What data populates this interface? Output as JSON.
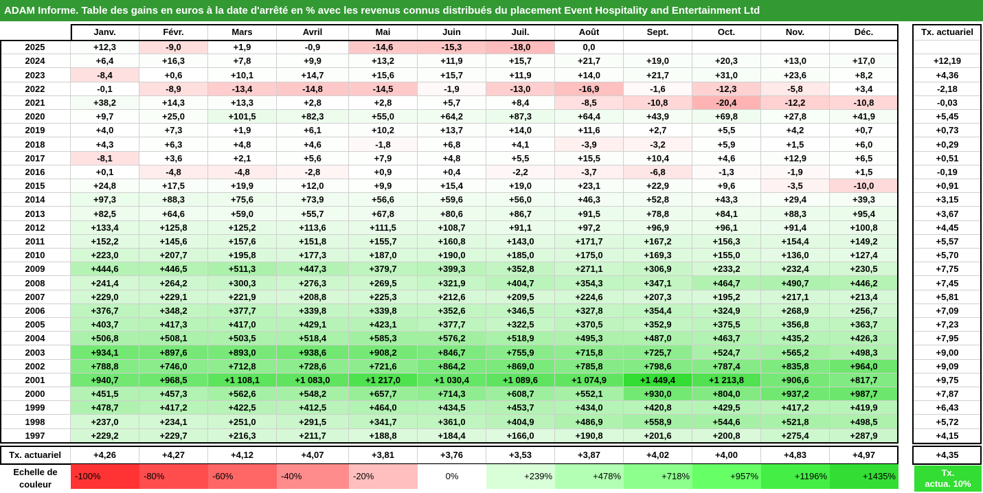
{
  "title": "ADAM Informe. Table des gains en euros à la date d'arrêté en % avec les revenus connus distribués du placement Event Hospitality and Entertainment Ltd",
  "months": [
    "Janv.",
    "Févr.",
    "Mars",
    "Avril",
    "Mai",
    "Juin",
    "Juil.",
    "Août",
    "Sept.",
    "Oct.",
    "Nov.",
    "Déc."
  ],
  "tx_header": "Tx. actuariel",
  "rows": [
    {
      "year": "2025",
      "values": [
        "+12,3",
        "-9,0",
        "+1,9",
        "-0,9",
        "-14,6",
        "-15,3",
        "-18,0",
        "0,0",
        "",
        "",
        "",
        ""
      ],
      "tx": ""
    },
    {
      "year": "2024",
      "values": [
        "+6,4",
        "+16,3",
        "+7,8",
        "+9,9",
        "+13,2",
        "+11,9",
        "+15,7",
        "+21,7",
        "+19,0",
        "+20,3",
        "+13,0",
        "+17,0"
      ],
      "tx": "+12,19"
    },
    {
      "year": "2023",
      "values": [
        "-8,4",
        "+0,6",
        "+10,1",
        "+14,7",
        "+15,6",
        "+15,7",
        "+11,9",
        "+14,0",
        "+21,7",
        "+31,0",
        "+23,6",
        "+8,2"
      ],
      "tx": "+4,36"
    },
    {
      "year": "2022",
      "values": [
        "-0,1",
        "-8,9",
        "-13,4",
        "-14,8",
        "-14,5",
        "-1,9",
        "-13,0",
        "-16,9",
        "-1,6",
        "-12,3",
        "-5,8",
        "+3,4"
      ],
      "tx": "-2,18"
    },
    {
      "year": "2021",
      "values": [
        "+38,2",
        "+14,3",
        "+13,3",
        "+2,8",
        "+2,8",
        "+5,7",
        "+8,4",
        "-8,5",
        "-10,8",
        "-20,4",
        "-12,2",
        "-10,8"
      ],
      "tx": "-0,03"
    },
    {
      "year": "2020",
      "values": [
        "+9,7",
        "+25,0",
        "+101,5",
        "+82,3",
        "+55,0",
        "+64,2",
        "+87,3",
        "+64,4",
        "+43,9",
        "+69,8",
        "+27,8",
        "+41,9"
      ],
      "tx": "+5,45"
    },
    {
      "year": "2019",
      "values": [
        "+4,0",
        "+7,3",
        "+1,9",
        "+6,1",
        "+10,2",
        "+13,7",
        "+14,0",
        "+11,6",
        "+2,7",
        "+5,5",
        "+4,2",
        "+0,7"
      ],
      "tx": "+0,73"
    },
    {
      "year": "2018",
      "values": [
        "+4,3",
        "+6,3",
        "+4,8",
        "+4,6",
        "-1,8",
        "+6,8",
        "+4,1",
        "-3,9",
        "-3,2",
        "+5,9",
        "+1,5",
        "+6,0"
      ],
      "tx": "+0,29"
    },
    {
      "year": "2017",
      "values": [
        "-8,1",
        "+3,6",
        "+2,1",
        "+5,6",
        "+7,9",
        "+4,8",
        "+5,5",
        "+15,5",
        "+10,4",
        "+4,6",
        "+12,9",
        "+6,5"
      ],
      "tx": "+0,51"
    },
    {
      "year": "2016",
      "values": [
        "+0,1",
        "-4,8",
        "-4,8",
        "-2,8",
        "+0,9",
        "+0,4",
        "-2,2",
        "-3,7",
        "-6,8",
        "-1,3",
        "-1,9",
        "+1,5"
      ],
      "tx": "-0,19"
    },
    {
      "year": "2015",
      "values": [
        "+24,8",
        "+17,5",
        "+19,9",
        "+12,0",
        "+9,9",
        "+15,4",
        "+19,0",
        "+23,1",
        "+22,9",
        "+9,6",
        "-3,5",
        "-10,0"
      ],
      "tx": "+0,91"
    },
    {
      "year": "2014",
      "values": [
        "+97,3",
        "+88,3",
        "+75,6",
        "+73,9",
        "+56,6",
        "+59,6",
        "+56,0",
        "+46,3",
        "+52,8",
        "+43,3",
        "+29,4",
        "+39,3"
      ],
      "tx": "+3,15"
    },
    {
      "year": "2013",
      "values": [
        "+82,5",
        "+64,6",
        "+59,0",
        "+55,7",
        "+67,8",
        "+80,6",
        "+86,7",
        "+91,5",
        "+78,8",
        "+84,1",
        "+88,3",
        "+95,4"
      ],
      "tx": "+3,67"
    },
    {
      "year": "2012",
      "values": [
        "+133,4",
        "+125,8",
        "+125,2",
        "+113,6",
        "+111,5",
        "+108,7",
        "+91,1",
        "+97,2",
        "+96,9",
        "+96,1",
        "+91,4",
        "+100,8"
      ],
      "tx": "+4,45"
    },
    {
      "year": "2011",
      "values": [
        "+152,2",
        "+145,6",
        "+157,6",
        "+151,8",
        "+155,7",
        "+160,8",
        "+143,0",
        "+171,7",
        "+167,2",
        "+156,3",
        "+154,4",
        "+149,2"
      ],
      "tx": "+5,57"
    },
    {
      "year": "2010",
      "values": [
        "+223,0",
        "+207,7",
        "+195,8",
        "+177,3",
        "+187,0",
        "+190,0",
        "+185,0",
        "+175,0",
        "+169,3",
        "+155,0",
        "+136,0",
        "+127,4"
      ],
      "tx": "+5,70"
    },
    {
      "year": "2009",
      "values": [
        "+444,6",
        "+446,5",
        "+511,3",
        "+447,3",
        "+379,7",
        "+399,3",
        "+352,8",
        "+271,1",
        "+306,9",
        "+233,2",
        "+232,4",
        "+230,5"
      ],
      "tx": "+7,75"
    },
    {
      "year": "2008",
      "values": [
        "+241,4",
        "+264,2",
        "+300,3",
        "+276,3",
        "+269,5",
        "+321,9",
        "+404,7",
        "+354,3",
        "+347,1",
        "+464,7",
        "+490,7",
        "+446,2"
      ],
      "tx": "+7,45"
    },
    {
      "year": "2007",
      "values": [
        "+229,0",
        "+229,1",
        "+221,9",
        "+208,8",
        "+225,3",
        "+212,6",
        "+209,5",
        "+224,6",
        "+207,3",
        "+195,2",
        "+217,1",
        "+213,4"
      ],
      "tx": "+5,81"
    },
    {
      "year": "2006",
      "values": [
        "+376,7",
        "+348,2",
        "+377,7",
        "+339,8",
        "+339,8",
        "+352,6",
        "+346,5",
        "+327,8",
        "+354,4",
        "+324,9",
        "+268,9",
        "+256,7"
      ],
      "tx": "+7,09"
    },
    {
      "year": "2005",
      "values": [
        "+403,7",
        "+417,3",
        "+417,0",
        "+429,1",
        "+423,1",
        "+377,7",
        "+322,5",
        "+370,5",
        "+352,9",
        "+375,5",
        "+356,8",
        "+363,7"
      ],
      "tx": "+7,23"
    },
    {
      "year": "2004",
      "values": [
        "+506,8",
        "+508,1",
        "+503,5",
        "+518,4",
        "+585,3",
        "+576,2",
        "+518,9",
        "+495,3",
        "+487,0",
        "+463,7",
        "+435,2",
        "+426,3"
      ],
      "tx": "+7,95"
    },
    {
      "year": "2003",
      "values": [
        "+934,1",
        "+897,6",
        "+893,0",
        "+938,6",
        "+908,2",
        "+846,7",
        "+755,9",
        "+715,8",
        "+725,7",
        "+524,7",
        "+565,2",
        "+498,3"
      ],
      "tx": "+9,00"
    },
    {
      "year": "2002",
      "values": [
        "+788,8",
        "+746,0",
        "+712,8",
        "+728,6",
        "+721,6",
        "+864,2",
        "+869,0",
        "+785,8",
        "+798,6",
        "+787,4",
        "+835,8",
        "+964,0"
      ],
      "tx": "+9,09"
    },
    {
      "year": "2001",
      "values": [
        "+940,7",
        "+968,5",
        "+1 108,1",
        "+1 083,0",
        "+1 217,0",
        "+1 030,4",
        "+1 089,6",
        "+1 074,9",
        "+1 449,4",
        "+1 213,8",
        "+906,6",
        "+817,7"
      ],
      "tx": "+9,75"
    },
    {
      "year": "2000",
      "values": [
        "+451,5",
        "+457,3",
        "+562,6",
        "+548,2",
        "+657,7",
        "+714,3",
        "+608,7",
        "+552,1",
        "+930,0",
        "+804,0",
        "+937,2",
        "+987,7"
      ],
      "tx": "+7,87"
    },
    {
      "year": "1999",
      "values": [
        "+478,7",
        "+417,2",
        "+422,5",
        "+412,5",
        "+464,0",
        "+434,5",
        "+453,7",
        "+434,0",
        "+420,8",
        "+429,5",
        "+417,2",
        "+419,9"
      ],
      "tx": "+6,43"
    },
    {
      "year": "1998",
      "values": [
        "+237,0",
        "+234,1",
        "+251,0",
        "+291,5",
        "+341,7",
        "+361,0",
        "+404,9",
        "+486,9",
        "+558,9",
        "+544,6",
        "+521,8",
        "+498,5"
      ],
      "tx": "+5,72"
    },
    {
      "year": "1997",
      "values": [
        "+229,2",
        "+229,7",
        "+216,3",
        "+211,7",
        "+188,8",
        "+184,4",
        "+166,0",
        "+190,8",
        "+201,6",
        "+200,8",
        "+275,4",
        "+287,9"
      ],
      "tx": "+4,15"
    }
  ],
  "footer": {
    "label": "Tx. actuariel",
    "values": [
      "+4,26",
      "+4,27",
      "+4,12",
      "+4,07",
      "+3,81",
      "+3,76",
      "+3,53",
      "+3,87",
      "+4,02",
      "+4,00",
      "+4,83",
      "+4,97"
    ],
    "tx": "+4,35"
  },
  "legend": {
    "label_line1": "Echelle de",
    "label_line2": "couleur",
    "items": [
      {
        "text": "-100%",
        "color": "#ff3333"
      },
      {
        "text": "-80%",
        "color": "#ff4d4d"
      },
      {
        "text": "-60%",
        "color": "#ff6666"
      },
      {
        "text": "-40%",
        "color": "#ff8c8c"
      },
      {
        "text": "-20%",
        "color": "#ffbfbf"
      },
      {
        "text": "0%",
        "color": "#ffffff"
      },
      {
        "text": "+239%",
        "color": "#d9ffd9"
      },
      {
        "text": "+478%",
        "color": "#b3ffb3"
      },
      {
        "text": "+718%",
        "color": "#8cff8c"
      },
      {
        "text": "+957%",
        "color": "#66ff66"
      },
      {
        "text": "+1196%",
        "color": "#44ee44"
      },
      {
        "text": "+1435%",
        "color": "#33dd33"
      }
    ],
    "tx10_line1": "Tx.",
    "tx10_line2": "actua. 10%"
  },
  "colors": {
    "title_bg": "#339933",
    "positive_max": "#33dd33",
    "negative_max": "#ff3333"
  }
}
